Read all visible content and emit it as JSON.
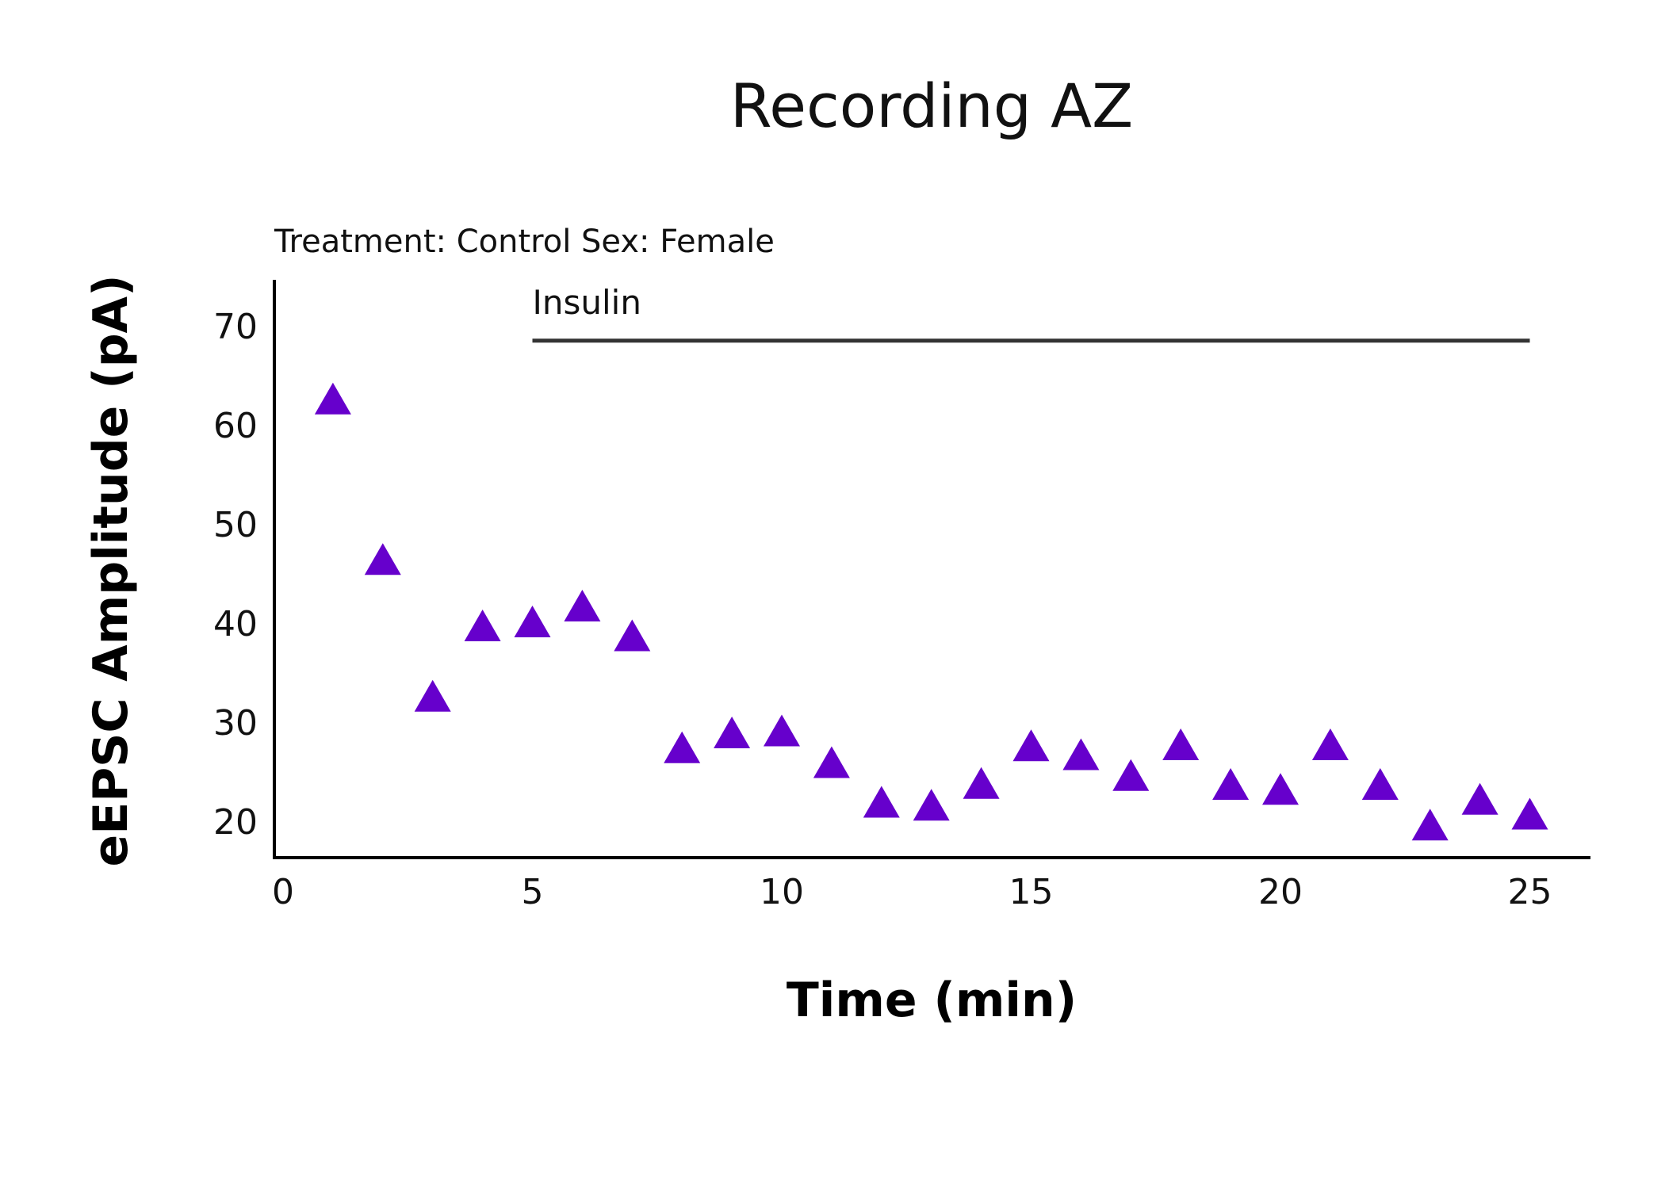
{
  "chart_data": {
    "type": "scatter",
    "title": "Recording AZ",
    "subtitle": "Treatment: Control  Sex: Female",
    "xlabel": "Time (min)",
    "ylabel": "eEPSC Amplitude (pA)",
    "xlim": [
      0,
      26
    ],
    "ylim": [
      17,
      75
    ],
    "xticks": [
      0,
      5,
      10,
      15,
      20,
      25
    ],
    "yticks": [
      20,
      30,
      40,
      50,
      60,
      70
    ],
    "grid": false,
    "marker_color": "#6600cc",
    "marker": "triangle",
    "series": [
      {
        "name": "eEPSC Amplitude",
        "x": [
          1,
          2,
          3,
          4,
          5,
          6,
          7,
          8,
          9,
          10,
          11,
          12,
          13,
          14,
          15,
          16,
          17,
          18,
          19,
          20,
          21,
          22,
          23,
          24,
          25
        ],
        "y": [
          62.5,
          46.3,
          32.5,
          39.6,
          40.0,
          41.6,
          38.6,
          27.3,
          28.8,
          29.0,
          25.8,
          21.8,
          21.5,
          23.7,
          27.5,
          26.6,
          24.5,
          27.6,
          23.6,
          23.1,
          27.6,
          23.6,
          19.5,
          22.1,
          20.6
        ]
      }
    ],
    "annotations": [
      {
        "label": "Insulin",
        "x_start": 5,
        "x_end": 25,
        "y": 68.5
      }
    ]
  }
}
